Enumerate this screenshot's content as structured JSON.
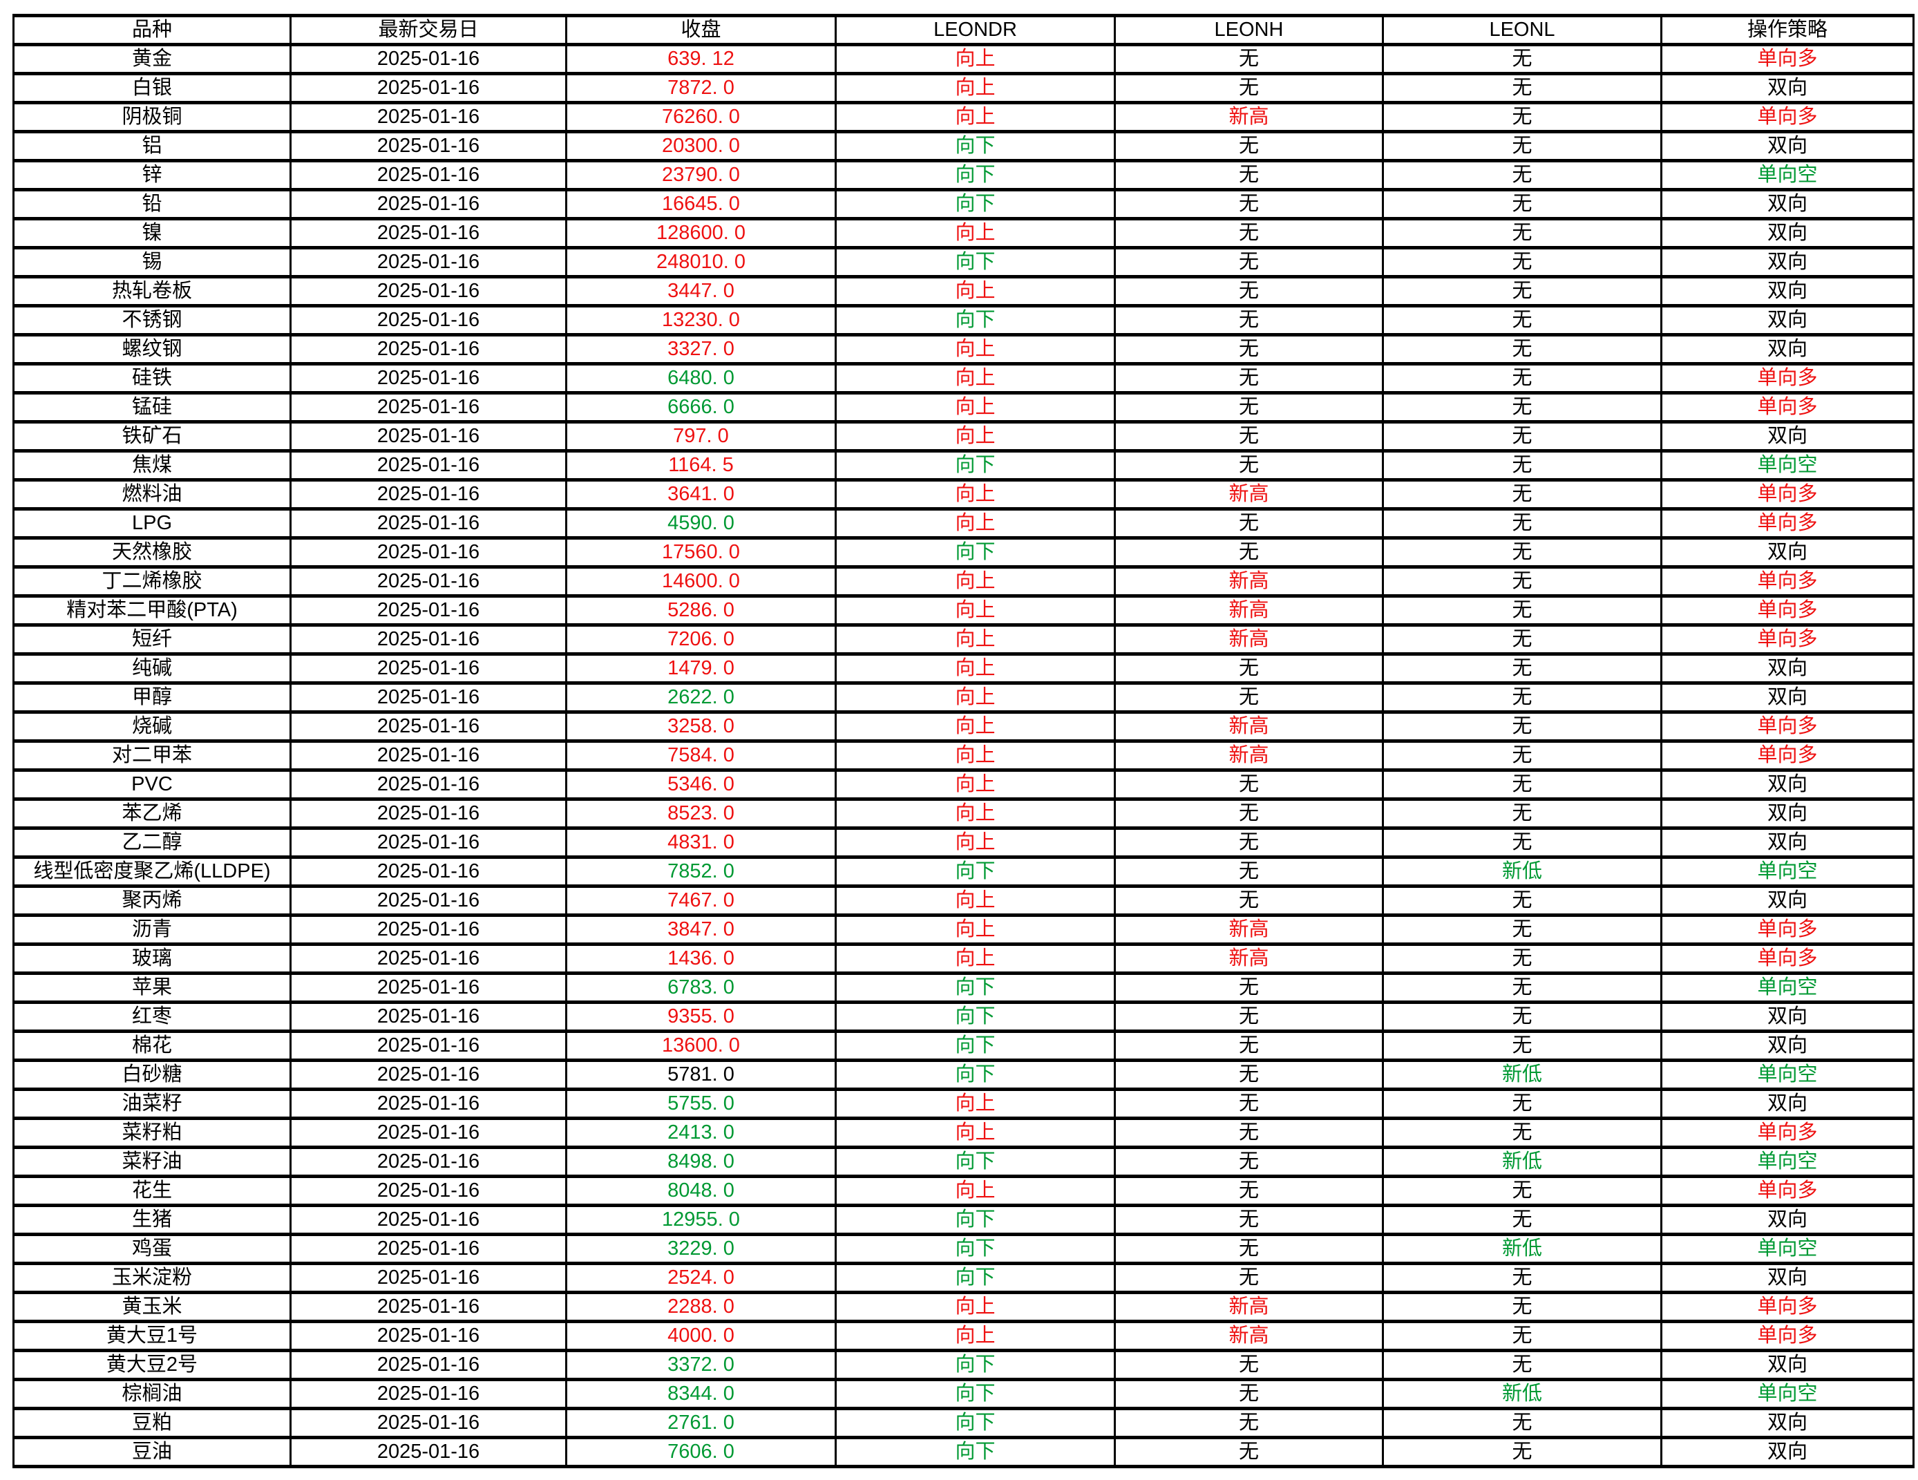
{
  "colors": {
    "red": "#ee1111",
    "green": "#009933",
    "black": "#000000"
  },
  "value_colors": {
    "向上": "red",
    "向下": "green",
    "新高": "red",
    "新低": "green",
    "单向多": "red",
    "单向空": "green",
    "双向": "black",
    "无": "black"
  },
  "chart_data": {
    "type": "table",
    "columns": [
      "品种",
      "最新交易日",
      "收盘",
      "LEONDR",
      "LEONH",
      "LEONL",
      "操作策略"
    ],
    "column_keys": [
      "variety",
      "date",
      "close",
      "leondr",
      "leonh",
      "leonl",
      "strategy"
    ],
    "rows": [
      {
        "variety": "黄金",
        "date": "2025-01-16",
        "close": "639. 12",
        "close_color": "red",
        "leondr": "向上",
        "leonh": "无",
        "leonl": "无",
        "strategy": "单向多"
      },
      {
        "variety": "白银",
        "date": "2025-01-16",
        "close": "7872. 0",
        "close_color": "red",
        "leondr": "向上",
        "leonh": "无",
        "leonl": "无",
        "strategy": "双向"
      },
      {
        "variety": "阴极铜",
        "date": "2025-01-16",
        "close": "76260. 0",
        "close_color": "red",
        "leondr": "向上",
        "leonh": "新高",
        "leonl": "无",
        "strategy": "单向多"
      },
      {
        "variety": "铝",
        "date": "2025-01-16",
        "close": "20300. 0",
        "close_color": "red",
        "leondr": "向下",
        "leonh": "无",
        "leonl": "无",
        "strategy": "双向"
      },
      {
        "variety": "锌",
        "date": "2025-01-16",
        "close": "23790. 0",
        "close_color": "red",
        "leondr": "向下",
        "leonh": "无",
        "leonl": "无",
        "strategy": "单向空"
      },
      {
        "variety": "铅",
        "date": "2025-01-16",
        "close": "16645. 0",
        "close_color": "red",
        "leondr": "向下",
        "leonh": "无",
        "leonl": "无",
        "strategy": "双向"
      },
      {
        "variety": "镍",
        "date": "2025-01-16",
        "close": "128600. 0",
        "close_color": "red",
        "leondr": "向上",
        "leonh": "无",
        "leonl": "无",
        "strategy": "双向"
      },
      {
        "variety": "锡",
        "date": "2025-01-16",
        "close": "248010. 0",
        "close_color": "red",
        "leondr": "向下",
        "leonh": "无",
        "leonl": "无",
        "strategy": "双向"
      },
      {
        "variety": "热轧卷板",
        "date": "2025-01-16",
        "close": "3447. 0",
        "close_color": "red",
        "leondr": "向上",
        "leonh": "无",
        "leonl": "无",
        "strategy": "双向"
      },
      {
        "variety": "不锈钢",
        "date": "2025-01-16",
        "close": "13230. 0",
        "close_color": "red",
        "leondr": "向下",
        "leonh": "无",
        "leonl": "无",
        "strategy": "双向"
      },
      {
        "variety": "螺纹钢",
        "date": "2025-01-16",
        "close": "3327. 0",
        "close_color": "red",
        "leondr": "向上",
        "leonh": "无",
        "leonl": "无",
        "strategy": "双向"
      },
      {
        "variety": "硅铁",
        "date": "2025-01-16",
        "close": "6480. 0",
        "close_color": "green",
        "leondr": "向上",
        "leonh": "无",
        "leonl": "无",
        "strategy": "单向多"
      },
      {
        "variety": "锰硅",
        "date": "2025-01-16",
        "close": "6666. 0",
        "close_color": "green",
        "leondr": "向上",
        "leonh": "无",
        "leonl": "无",
        "strategy": "单向多"
      },
      {
        "variety": "铁矿石",
        "date": "2025-01-16",
        "close": "797. 0",
        "close_color": "red",
        "leondr": "向上",
        "leonh": "无",
        "leonl": "无",
        "strategy": "双向"
      },
      {
        "variety": "焦煤",
        "date": "2025-01-16",
        "close": "1164. 5",
        "close_color": "red",
        "leondr": "向下",
        "leonh": "无",
        "leonl": "无",
        "strategy": "单向空"
      },
      {
        "variety": "燃料油",
        "date": "2025-01-16",
        "close": "3641. 0",
        "close_color": "red",
        "leondr": "向上",
        "leonh": "新高",
        "leonl": "无",
        "strategy": "单向多"
      },
      {
        "variety": "LPG",
        "date": "2025-01-16",
        "close": "4590. 0",
        "close_color": "green",
        "leondr": "向上",
        "leonh": "无",
        "leonl": "无",
        "strategy": "单向多"
      },
      {
        "variety": "天然橡胶",
        "date": "2025-01-16",
        "close": "17560. 0",
        "close_color": "red",
        "leondr": "向下",
        "leonh": "无",
        "leonl": "无",
        "strategy": "双向"
      },
      {
        "variety": "丁二烯橡胶",
        "date": "2025-01-16",
        "close": "14600. 0",
        "close_color": "red",
        "leondr": "向上",
        "leonh": "新高",
        "leonl": "无",
        "strategy": "单向多"
      },
      {
        "variety": "精对苯二甲酸(PTA)",
        "date": "2025-01-16",
        "close": "5286. 0",
        "close_color": "red",
        "leondr": "向上",
        "leonh": "新高",
        "leonl": "无",
        "strategy": "单向多"
      },
      {
        "variety": "短纤",
        "date": "2025-01-16",
        "close": "7206. 0",
        "close_color": "red",
        "leondr": "向上",
        "leonh": "新高",
        "leonl": "无",
        "strategy": "单向多"
      },
      {
        "variety": "纯碱",
        "date": "2025-01-16",
        "close": "1479. 0",
        "close_color": "red",
        "leondr": "向上",
        "leonh": "无",
        "leonl": "无",
        "strategy": "双向"
      },
      {
        "variety": "甲醇",
        "date": "2025-01-16",
        "close": "2622. 0",
        "close_color": "green",
        "leondr": "向上",
        "leonh": "无",
        "leonl": "无",
        "strategy": "双向"
      },
      {
        "variety": "烧碱",
        "date": "2025-01-16",
        "close": "3258. 0",
        "close_color": "red",
        "leondr": "向上",
        "leonh": "新高",
        "leonl": "无",
        "strategy": "单向多"
      },
      {
        "variety": "对二甲苯",
        "date": "2025-01-16",
        "close": "7584. 0",
        "close_color": "red",
        "leondr": "向上",
        "leonh": "新高",
        "leonl": "无",
        "strategy": "单向多"
      },
      {
        "variety": "PVC",
        "date": "2025-01-16",
        "close": "5346. 0",
        "close_color": "red",
        "leondr": "向上",
        "leonh": "无",
        "leonl": "无",
        "strategy": "双向"
      },
      {
        "variety": "苯乙烯",
        "date": "2025-01-16",
        "close": "8523. 0",
        "close_color": "red",
        "leondr": "向上",
        "leonh": "无",
        "leonl": "无",
        "strategy": "双向"
      },
      {
        "variety": "乙二醇",
        "date": "2025-01-16",
        "close": "4831. 0",
        "close_color": "red",
        "leondr": "向上",
        "leonh": "无",
        "leonl": "无",
        "strategy": "双向"
      },
      {
        "variety": "线型低密度聚乙烯(LLDPE)",
        "date": "2025-01-16",
        "close": "7852. 0",
        "close_color": "green",
        "leondr": "向下",
        "leonh": "无",
        "leonl": "新低",
        "strategy": "单向空"
      },
      {
        "variety": "聚丙烯",
        "date": "2025-01-16",
        "close": "7467. 0",
        "close_color": "red",
        "leondr": "向上",
        "leonh": "无",
        "leonl": "无",
        "strategy": "双向"
      },
      {
        "variety": "沥青",
        "date": "2025-01-16",
        "close": "3847. 0",
        "close_color": "red",
        "leondr": "向上",
        "leonh": "新高",
        "leonl": "无",
        "strategy": "单向多"
      },
      {
        "variety": "玻璃",
        "date": "2025-01-16",
        "close": "1436. 0",
        "close_color": "red",
        "leondr": "向上",
        "leonh": "新高",
        "leonl": "无",
        "strategy": "单向多"
      },
      {
        "variety": "苹果",
        "date": "2025-01-16",
        "close": "6783. 0",
        "close_color": "green",
        "leondr": "向下",
        "leonh": "无",
        "leonl": "无",
        "strategy": "单向空"
      },
      {
        "variety": "红枣",
        "date": "2025-01-16",
        "close": "9355. 0",
        "close_color": "red",
        "leondr": "向下",
        "leonh": "无",
        "leonl": "无",
        "strategy": "双向"
      },
      {
        "variety": "棉花",
        "date": "2025-01-16",
        "close": "13600. 0",
        "close_color": "red",
        "leondr": "向下",
        "leonh": "无",
        "leonl": "无",
        "strategy": "双向"
      },
      {
        "variety": "白砂糖",
        "date": "2025-01-16",
        "close": "5781. 0",
        "close_color": "black",
        "leondr": "向下",
        "leonh": "无",
        "leonl": "新低",
        "strategy": "单向空"
      },
      {
        "variety": "油菜籽",
        "date": "2025-01-16",
        "close": "5755. 0",
        "close_color": "green",
        "leondr": "向上",
        "leonh": "无",
        "leonl": "无",
        "strategy": "双向"
      },
      {
        "variety": "菜籽粕",
        "date": "2025-01-16",
        "close": "2413. 0",
        "close_color": "green",
        "leondr": "向上",
        "leonh": "无",
        "leonl": "无",
        "strategy": "单向多"
      },
      {
        "variety": "菜籽油",
        "date": "2025-01-16",
        "close": "8498. 0",
        "close_color": "green",
        "leondr": "向下",
        "leonh": "无",
        "leonl": "新低",
        "strategy": "单向空"
      },
      {
        "variety": "花生",
        "date": "2025-01-16",
        "close": "8048. 0",
        "close_color": "green",
        "leondr": "向上",
        "leonh": "无",
        "leonl": "无",
        "strategy": "单向多"
      },
      {
        "variety": "生猪",
        "date": "2025-01-16",
        "close": "12955. 0",
        "close_color": "green",
        "leondr": "向下",
        "leonh": "无",
        "leonl": "无",
        "strategy": "双向"
      },
      {
        "variety": "鸡蛋",
        "date": "2025-01-16",
        "close": "3229. 0",
        "close_color": "green",
        "leondr": "向下",
        "leonh": "无",
        "leonl": "新低",
        "strategy": "单向空"
      },
      {
        "variety": "玉米淀粉",
        "date": "2025-01-16",
        "close": "2524. 0",
        "close_color": "red",
        "leondr": "向下",
        "leonh": "无",
        "leonl": "无",
        "strategy": "双向"
      },
      {
        "variety": "黄玉米",
        "date": "2025-01-16",
        "close": "2288. 0",
        "close_color": "red",
        "leondr": "向上",
        "leonh": "新高",
        "leonl": "无",
        "strategy": "单向多"
      },
      {
        "variety": "黄大豆1号",
        "date": "2025-01-16",
        "close": "4000. 0",
        "close_color": "red",
        "leondr": "向上",
        "leonh": "新高",
        "leonl": "无",
        "strategy": "单向多"
      },
      {
        "variety": "黄大豆2号",
        "date": "2025-01-16",
        "close": "3372. 0",
        "close_color": "green",
        "leondr": "向下",
        "leonh": "无",
        "leonl": "无",
        "strategy": "双向"
      },
      {
        "variety": "棕榈油",
        "date": "2025-01-16",
        "close": "8344. 0",
        "close_color": "green",
        "leondr": "向下",
        "leonh": "无",
        "leonl": "新低",
        "strategy": "单向空"
      },
      {
        "variety": "豆粕",
        "date": "2025-01-16",
        "close": "2761. 0",
        "close_color": "green",
        "leondr": "向下",
        "leonh": "无",
        "leonl": "无",
        "strategy": "双向"
      },
      {
        "variety": "豆油",
        "date": "2025-01-16",
        "close": "7606. 0",
        "close_color": "green",
        "leondr": "向下",
        "leonh": "无",
        "leonl": "无",
        "strategy": "双向"
      }
    ]
  }
}
